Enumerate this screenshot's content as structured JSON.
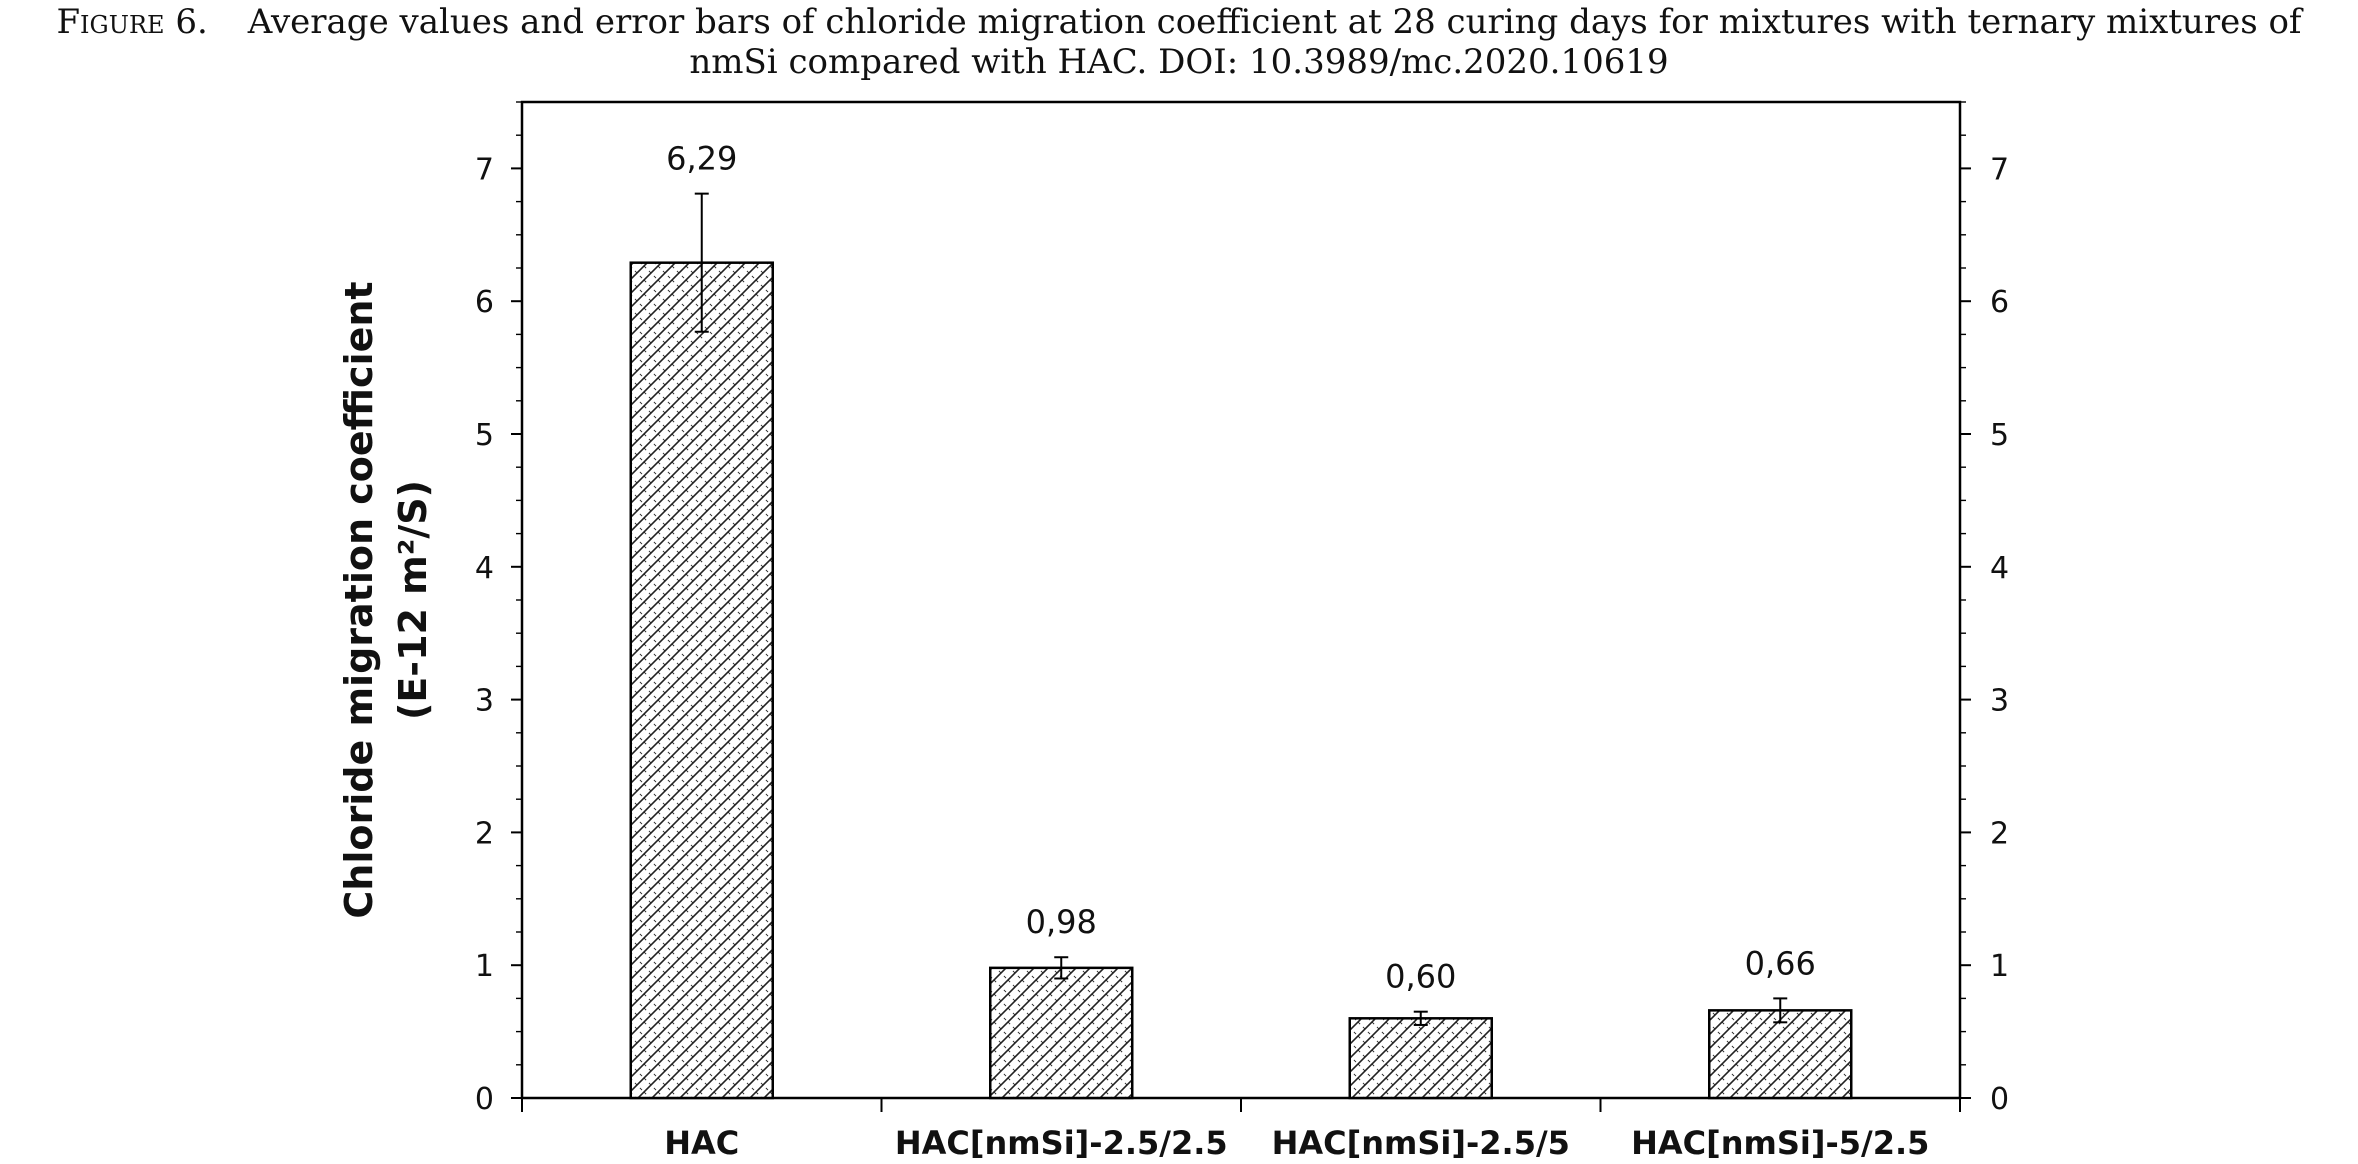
{
  "caption": {
    "label": "Figure 6.",
    "line1": "Average values and error bars of chloride migration coefficient at 28 curing days for mixtures with ternary mixtures of",
    "line2": "nmSi compared with HAC. DOI: 10.3989/mc.2020.10619"
  },
  "chart_data": {
    "type": "bar",
    "categories": [
      "HAC",
      "HAC[nmSi]-2.5/2.5",
      "HAC[nmSi]-2.5/5",
      "HAC[nmSi]-5/2.5"
    ],
    "values": [
      6.29,
      0.98,
      0.6,
      0.66
    ],
    "value_labels": [
      "6,29",
      "0,98",
      "0,60",
      "0,66"
    ],
    "error_bars": [
      0.52,
      0.08,
      0.05,
      0.09
    ],
    "ylabel_line1": "Chloride migration coefficient",
    "ylabel_line2": "(E-12 m²/S)",
    "xlabel": "",
    "ylim": [
      0,
      7.5
    ],
    "yticks": [
      0,
      1,
      2,
      3,
      4,
      5,
      6,
      7
    ],
    "secondary_y_axis": true,
    "bar_fill": "crosshatch",
    "bar_color": "#000000",
    "grid": false,
    "legend": "none"
  }
}
